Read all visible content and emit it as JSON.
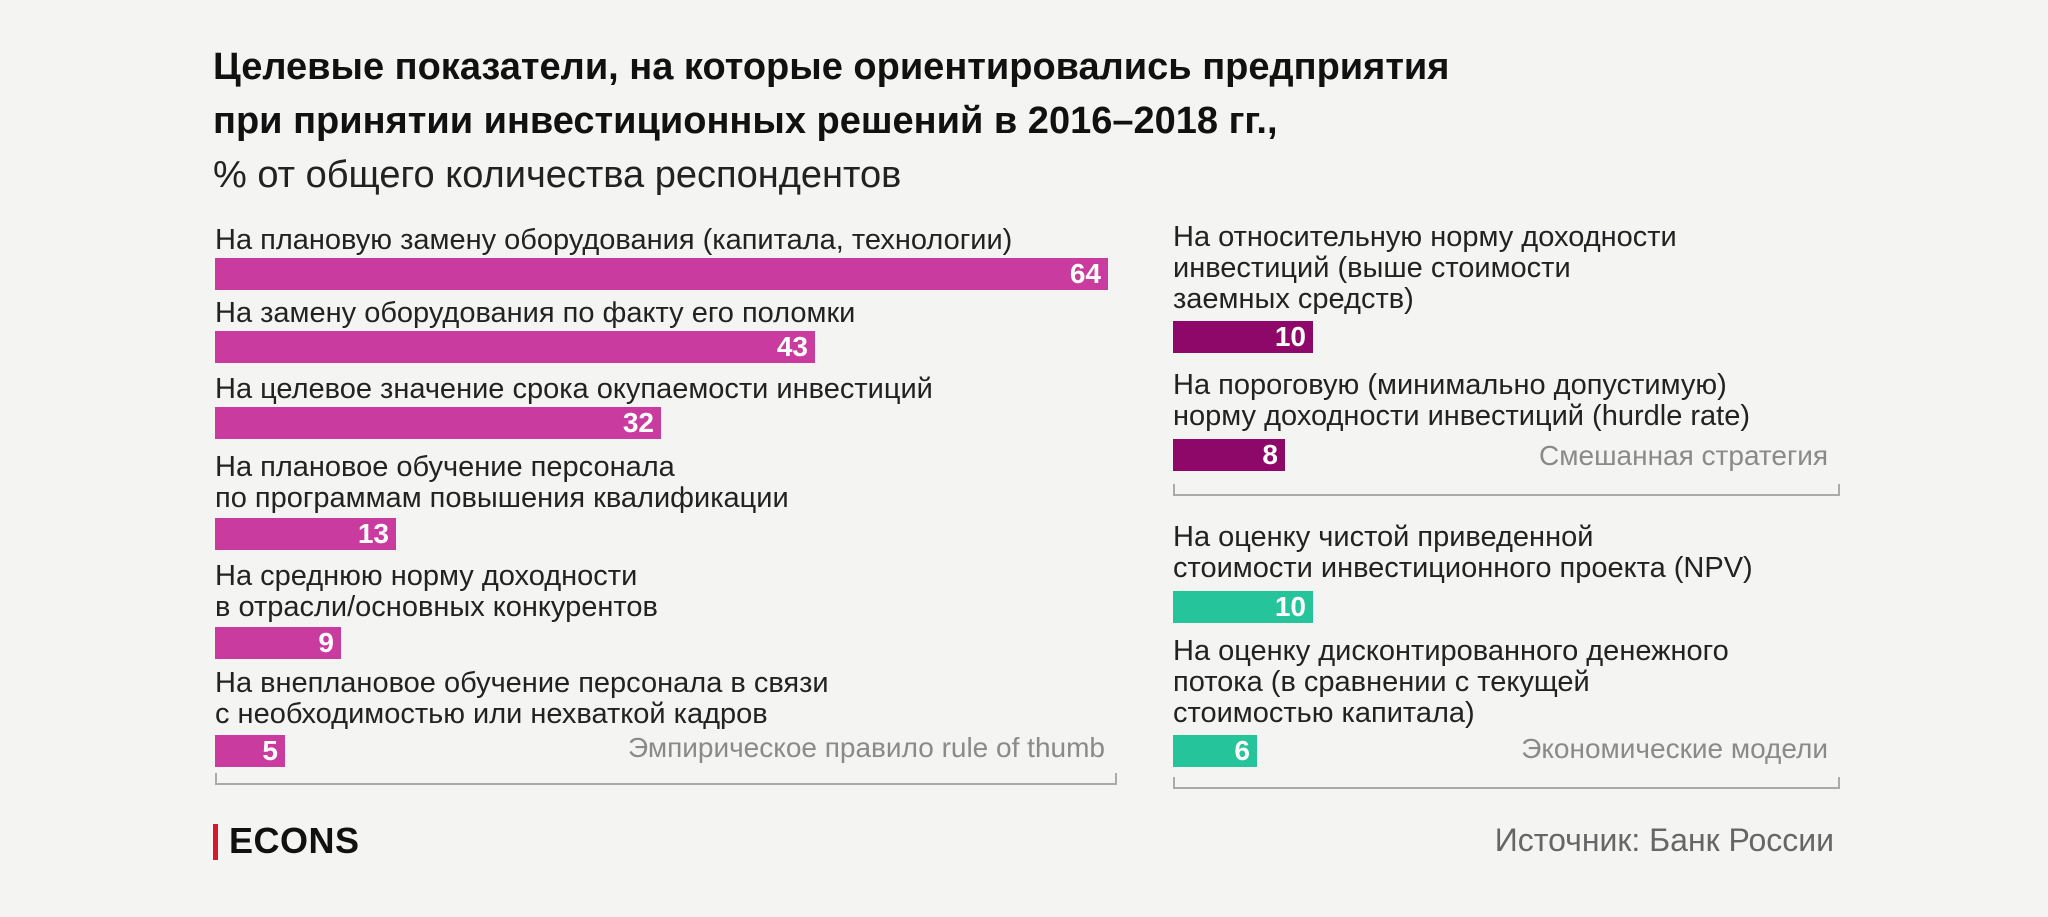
{
  "header": {
    "title_line1": "Целевые показатели, на которые ориентировались предприятия",
    "title_line2": "при принятии инвестиционных решений в 2016–2018 гг.,",
    "subtitle": "% от общего количества респондентов"
  },
  "footer": {
    "brand": "ECONS",
    "source": "Источник: Банк России"
  },
  "colors": {
    "magenta": "#c93b9e",
    "purple": "#8e0869",
    "teal": "#26c49a",
    "brand_mark": "#d7182a"
  },
  "chart_data": {
    "type": "bar",
    "orientation": "horizontal",
    "unit": "%",
    "groups": [
      {
        "name": "Эмпирическое правило rule of thumb",
        "color": "#c93b9e",
        "categories": [
          [
            "На плановую замену оборудования (капитала, технологии)"
          ],
          [
            "На замену оборудования по факту его поломки"
          ],
          [
            "На целевое значение срока окупаемости инвестиций"
          ],
          [
            "На плановое обучение персонала",
            "по программам повышения квалификации"
          ],
          [
            "На среднюю норму доходности",
            "в отрасли/основных конкурентов"
          ],
          [
            "На внеплановое обучение персонала в связи",
            "с необходимостью или нехваткой кадров"
          ]
        ],
        "values": [
          64,
          43,
          32,
          13,
          9,
          5
        ]
      },
      {
        "name": "Смешанная стратегия",
        "color": "#8e0869",
        "categories": [
          [
            "На относительную норму доходности",
            "инвестиций (выше стоимости",
            "заемных средств)"
          ],
          [
            "На пороговую (минимально допустимую)",
            "норму доходности инвестиций (hurdle rate)"
          ]
        ],
        "values": [
          10,
          8
        ]
      },
      {
        "name": "Экономические модели",
        "color": "#26c49a",
        "categories": [
          [
            "На оценку чистой приведенной",
            "стоимости инвестиционного проекта (NPV)"
          ],
          [
            "На оценку дисконтированного денежного",
            "потока (в сравнении с текущей",
            "стоимостью капитала)"
          ]
        ],
        "values": [
          10,
          6
        ]
      }
    ]
  }
}
